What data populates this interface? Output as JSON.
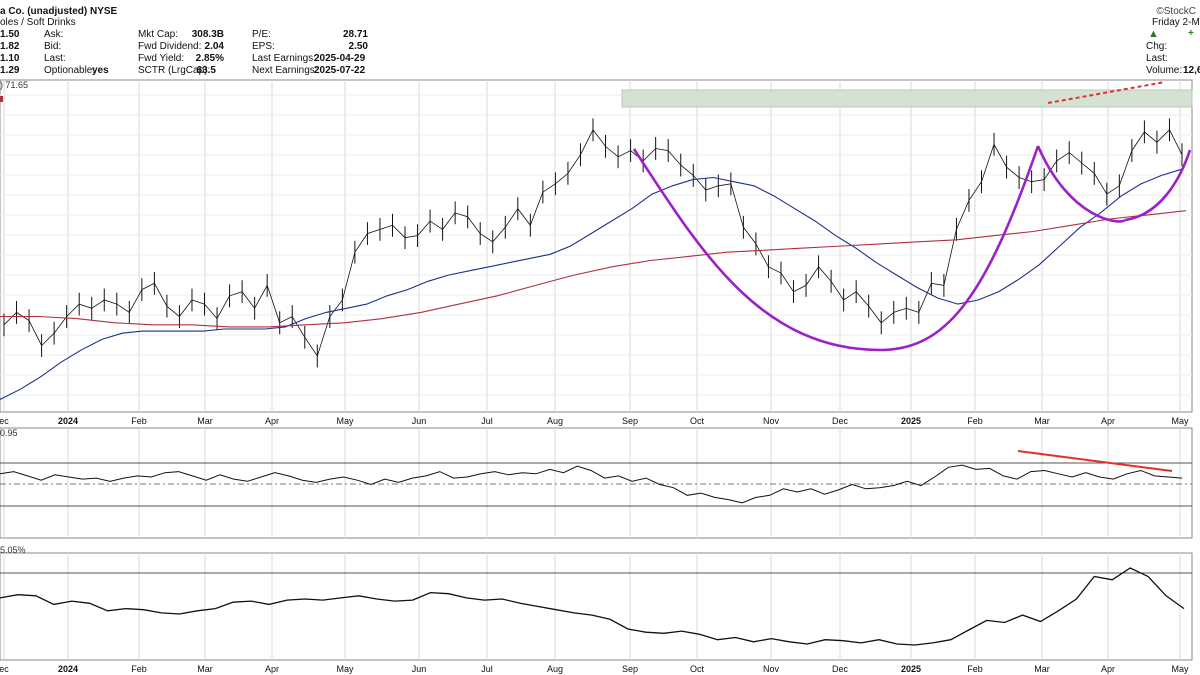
{
  "header": {
    "title": "a Co. (unadjusted)  NYSE",
    "industry": "oles / Soft Drinks",
    "watermark": "©StockC",
    "date": "Friday  2-M",
    "col1": {
      "values": [
        "1.50",
        "1.82",
        "1.10",
        "1.29"
      ],
      "labels": [
        "Ask:",
        "Bid:",
        "Last:",
        "Optionable:"
      ],
      "optionable": "yes"
    },
    "col2": {
      "labels": [
        "Mkt Cap:",
        "Fwd Dividend:",
        "Fwd Yield:",
        "SCTR (LrgCap):"
      ],
      "values": [
        "308.3B",
        "2.04",
        "2.85%",
        "63.5"
      ]
    },
    "col3": {
      "labels": [
        "P/E:",
        "EPS:",
        "Last Earnings:",
        "Next Earnings:"
      ],
      "values": [
        "28.71",
        "2.50",
        "2025-04-29",
        "2025-07-22"
      ]
    },
    "right": {
      "chg_label": "Chg:",
      "last_label": "Last:",
      "volume_label": "Volume:",
      "volume_value": "12,6"
    },
    "price_label": ") 71.65",
    "rsi_label": "0.95",
    "rel_label": "5.05%"
  },
  "colors": {
    "price": "#111111",
    "ma50": "#1f2f8f",
    "ma200": "#b03040",
    "cup": "#9b20c8",
    "trend": "#e0302a",
    "zone": "#d4e2d4",
    "grid": "#d8d8d8"
  },
  "chart_data": [
    {
      "type": "line",
      "panel": "price",
      "ylim": [
        58,
        74
      ],
      "x_tick_labels": [
        "ec",
        "2024",
        "Feb",
        "Mar",
        "Apr",
        "May",
        "Jun",
        "Jul",
        "Aug",
        "Sep",
        "Oct",
        "Nov",
        "Dec",
        "2025",
        "Feb",
        "Mar",
        "Apr",
        "May"
      ],
      "bold_ticks": [
        "2024",
        "2025"
      ],
      "series": [
        {
          "values": [
            62.2,
            62.8,
            62.4,
            61.2,
            61.8,
            62.6,
            63.2,
            63.0,
            63.4,
            63.2,
            62.8,
            63.9,
            64.2,
            63.1,
            62.6,
            63.4,
            63.2,
            62.5,
            63.6,
            63.8,
            63.0,
            64.1,
            62.3,
            62.6,
            61.6,
            60.7,
            62.6,
            63.4,
            65.7,
            66.6,
            66.8,
            67.0,
            66.4,
            66.5,
            67.2,
            66.8,
            67.6,
            67.4,
            66.6,
            66.2,
            66.9,
            67.8,
            67.0,
            68.6,
            69.0,
            69.5,
            70.4,
            71.6,
            70.8,
            70.3,
            70.6,
            70.1,
            70.7,
            70.6,
            69.9,
            69.4,
            68.7,
            68.9,
            69.0,
            66.9,
            66.1,
            65.0,
            64.7,
            63.8,
            64.1,
            65.0,
            64.3,
            63.4,
            63.8,
            63.1,
            62.3,
            62.8,
            63.0,
            62.8,
            64.2,
            64.1,
            66.8,
            68.2,
            69.1,
            70.9,
            69.8,
            69.3,
            69.1,
            69.2,
            70.1,
            70.5,
            70.0,
            69.5,
            68.5,
            68.9,
            70.6,
            71.5,
            71.0,
            71.6,
            70.4
          ]
        },
        {
          "values": [
            58.6,
            59.1,
            59.7,
            60.4,
            61.0,
            61.5,
            61.8,
            61.9,
            61.9,
            61.9,
            61.9,
            62.0,
            62.0,
            62.0,
            62.1,
            62.5,
            62.8,
            63.0,
            63.2,
            63.6,
            63.9,
            64.3,
            64.6,
            64.8,
            65.0,
            65.2,
            65.4,
            65.6,
            66.0,
            66.6,
            67.2,
            67.8,
            68.5,
            68.9,
            69.2,
            69.3,
            69.1,
            68.9,
            68.4,
            67.8,
            67.2,
            66.5,
            65.9,
            65.2,
            64.6,
            64.0,
            63.5,
            63.2,
            63.4,
            63.8,
            64.4,
            65.1,
            66.0,
            66.9,
            67.6,
            68.4,
            69.0,
            69.4,
            69.7
          ]
        },
        {
          "values": [
            62.6,
            62.6,
            62.5,
            62.3,
            62.2,
            62.2,
            62.1,
            62.1,
            62.2,
            62.3,
            62.5,
            62.8,
            63.2,
            63.6,
            64.1,
            64.6,
            65.0,
            65.3,
            65.5,
            65.7,
            65.8,
            65.9,
            66.0,
            66.1,
            66.2,
            66.3,
            66.5,
            66.7,
            67.0,
            67.3,
            67.5,
            67.7
          ]
        }
      ]
    },
    {
      "type": "line",
      "panel": "momentum",
      "series": [
        {
          "values": [
            60,
            62,
            58,
            54,
            59,
            57,
            55,
            56,
            53,
            56,
            58,
            57,
            61,
            62,
            58,
            54,
            59,
            55,
            53,
            57,
            61,
            58,
            54,
            52,
            55,
            57,
            54,
            50,
            55,
            52,
            56,
            58,
            62,
            56,
            57,
            60,
            62,
            59,
            61,
            60,
            64,
            61,
            67,
            63,
            56,
            58,
            53,
            56,
            50,
            47,
            40,
            42,
            38,
            36,
            33,
            38,
            40,
            46,
            43,
            46,
            41,
            45,
            50,
            46,
            47,
            49,
            53,
            49,
            57,
            66,
            68,
            64,
            65,
            58,
            55,
            62,
            63,
            60,
            57,
            61,
            57,
            55,
            60,
            63,
            58,
            57,
            56
          ]
        }
      ]
    },
    {
      "type": "line",
      "panel": "relative",
      "series": [
        {
          "values": [
            58,
            61,
            60,
            52,
            55,
            53,
            46,
            48,
            47,
            44,
            43,
            46,
            48,
            54,
            55,
            52,
            56,
            57,
            56,
            58,
            60,
            57,
            55,
            56,
            63,
            62,
            58,
            56,
            57,
            53,
            50,
            47,
            44,
            42,
            38,
            29,
            26,
            25,
            27,
            24,
            19,
            21,
            17,
            20,
            17,
            15,
            19,
            18,
            16,
            19,
            15,
            14,
            16,
            19,
            28,
            37,
            35,
            42,
            36,
            46,
            57,
            78,
            75,
            86,
            78,
            60,
            48
          ]
        }
      ]
    }
  ]
}
